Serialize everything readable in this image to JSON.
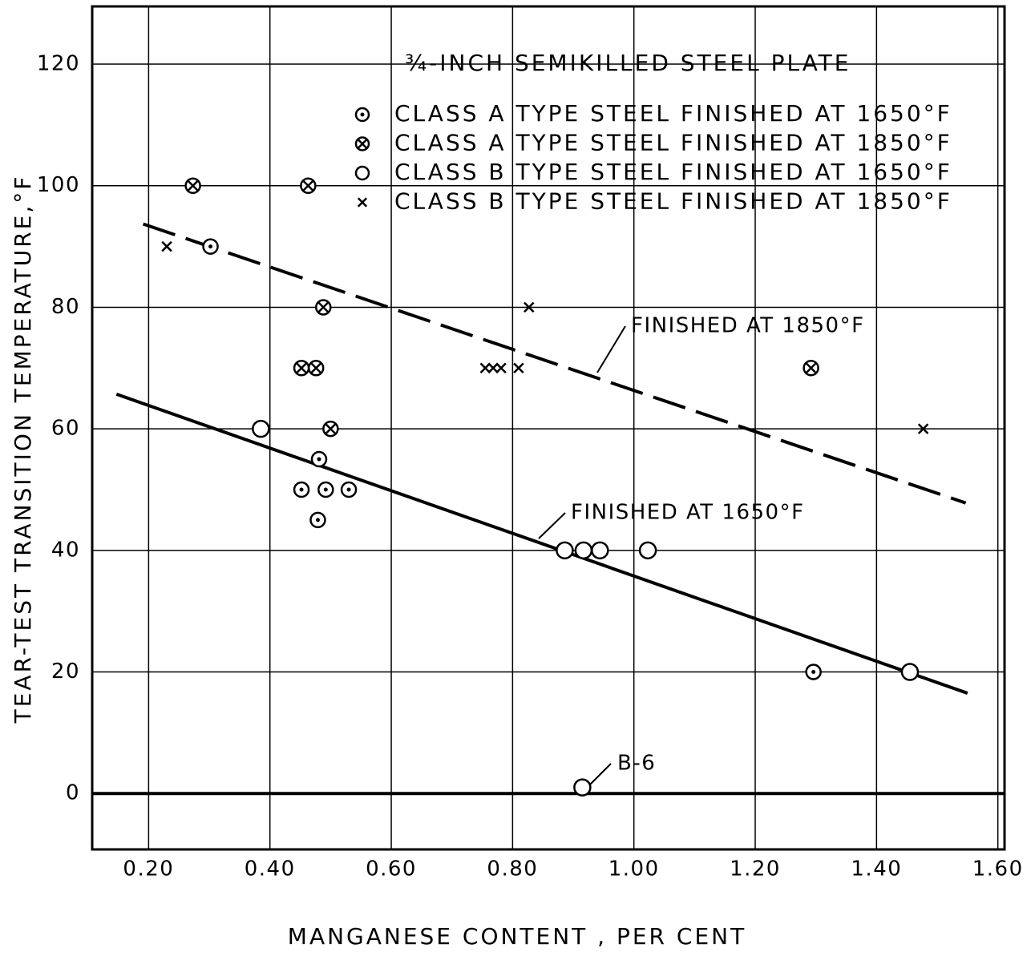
{
  "chart_data": {
    "type": "scatter",
    "title": "¾-INCH SEMIKILLED STEEL PLATE",
    "x_label": "MANGANESE CONTENT , PER CENT",
    "y_label": "TEAR-TEST TRANSITION TEMPERATURE,°F",
    "xlim": [
      0.107,
      1.611
    ],
    "ylim": [
      -9.2,
      129.5
    ],
    "xticks": [
      {
        "value": 0.2,
        "label": "0.20"
      },
      {
        "value": 0.4,
        "label": "0.40"
      },
      {
        "value": 0.6,
        "label": "0.60"
      },
      {
        "value": 0.8,
        "label": "0.80"
      },
      {
        "value": 1.0,
        "label": "1.00"
      },
      {
        "value": 1.2,
        "label": "1.20"
      },
      {
        "value": 1.4,
        "label": "1.40"
      },
      {
        "value": 1.6,
        "label": "1.60"
      }
    ],
    "yticks": [
      0,
      20,
      40,
      60,
      80,
      100,
      120
    ],
    "grid": true,
    "series": [
      {
        "name": "CLASS A TYPE STEEL FINISHED AT 1650°F",
        "marker": "dot-circle",
        "color": "#000000",
        "x": [
          0.302,
          0.481,
          0.452,
          0.492,
          0.53,
          0.479,
          1.296
        ],
        "values": [
          90,
          55,
          50,
          50,
          50,
          45,
          20
        ]
      },
      {
        "name": "CLASS A TYPE STEEL FINISHED AT 1850°F",
        "marker": "x-circle",
        "color": "#000000",
        "x": [
          0.273,
          0.463,
          0.488,
          0.452,
          0.476,
          0.5,
          1.292
        ],
        "values": [
          100,
          100,
          80,
          70,
          70,
          60,
          70
        ]
      },
      {
        "name": "CLASS B TYPE STEEL FINISHED AT 1650°F",
        "marker": "circle",
        "color": "#000000",
        "x": [
          0.385,
          0.886,
          0.917,
          0.944,
          1.023,
          1.455,
          0.915
        ],
        "values": [
          60,
          40,
          40,
          40,
          40,
          20,
          1
        ]
      },
      {
        "name": "CLASS B TYPE STEEL FINISHED AT 1850°F",
        "marker": "x",
        "color": "#000000",
        "x": [
          0.23,
          0.827,
          0.755,
          0.768,
          0.781,
          0.81,
          1.477
        ],
        "values": [
          90,
          80,
          70,
          70,
          70,
          70,
          60
        ]
      }
    ],
    "fit_lines": [
      {
        "style": "dashed",
        "x": [
          0.191,
          1.547
        ],
        "values": [
          93.7,
          47.8
        ]
      },
      {
        "style": "solid",
        "x": [
          0.147,
          1.55
        ],
        "values": [
          65.7,
          16.5
        ]
      }
    ],
    "annotations": [
      "FINISHED AT 1850°F",
      "FINISHED AT 1650°F",
      "B-6"
    ]
  }
}
